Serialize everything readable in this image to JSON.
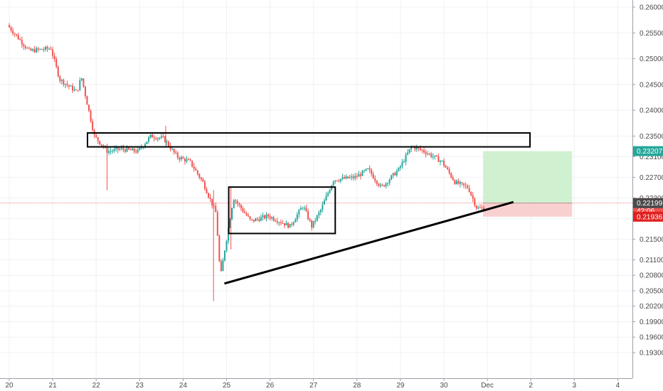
{
  "chart_data": {
    "type": "candlestick",
    "x_ticks": [
      "20",
      "21",
      "22",
      "23",
      "24",
      "25",
      "26",
      "27",
      "28",
      "29",
      "30",
      "Dec",
      "2",
      "3",
      "4"
    ],
    "y_ticks": [
      "0.26000",
      "0.25500",
      "0.25000",
      "0.24500",
      "0.24000",
      "0.23500",
      "0.23100",
      "0.22700",
      "0.22300",
      "0.21900",
      "0.21500",
      "0.21100",
      "0.20800",
      "0.20500",
      "0.20200",
      "0.19900",
      "0.19600",
      "0.19300"
    ],
    "ylim": [
      0.19,
      0.262
    ],
    "x_range": [
      "20",
      "4"
    ],
    "grid": true,
    "colors": {
      "up": "#26a69a",
      "down": "#ef5350",
      "target_zone": "#c8efc8",
      "stop_zone": "#f8c8c8",
      "current_line": "#f08080"
    },
    "price_tags": [
      {
        "label": "0.23207",
        "value": 0.23207,
        "color": "#26a69a"
      },
      {
        "label": "0.22201",
        "value": 0.22201,
        "color": "#ef5350"
      },
      {
        "label": "42:06",
        "value": 0.2205,
        "color": "#ef5350"
      },
      {
        "label": "0.22199",
        "value": 0.22199,
        "color": "#4a4a4a"
      },
      {
        "label": "0.21936",
        "value": 0.21936,
        "color": "#e02020"
      }
    ],
    "key_prices": [
      {
        "x": 20.0,
        "y": 0.2565
      },
      {
        "x": 20.5,
        "y": 0.2515
      },
      {
        "x": 21.0,
        "y": 0.252
      },
      {
        "x": 21.2,
        "y": 0.246
      },
      {
        "x": 21.6,
        "y": 0.2435
      },
      {
        "x": 21.7,
        "y": 0.2465
      },
      {
        "x": 22.0,
        "y": 0.235
      },
      {
        "x": 22.3,
        "y": 0.232
      },
      {
        "x": 22.6,
        "y": 0.2325
      },
      {
        "x": 23.0,
        "y": 0.232
      },
      {
        "x": 23.3,
        "y": 0.235
      },
      {
        "x": 23.6,
        "y": 0.2345
      },
      {
        "x": 23.9,
        "y": 0.231
      },
      {
        "x": 24.2,
        "y": 0.23
      },
      {
        "x": 24.5,
        "y": 0.226
      },
      {
        "x": 24.8,
        "y": 0.22
      },
      {
        "x": 24.9,
        "y": 0.2075
      },
      {
        "x": 25.0,
        "y": 0.213
      },
      {
        "x": 25.2,
        "y": 0.223
      },
      {
        "x": 25.6,
        "y": 0.2185
      },
      {
        "x": 26.0,
        "y": 0.2195
      },
      {
        "x": 26.5,
        "y": 0.2175
      },
      {
        "x": 26.8,
        "y": 0.2215
      },
      {
        "x": 27.0,
        "y": 0.2175
      },
      {
        "x": 27.2,
        "y": 0.2205
      },
      {
        "x": 27.5,
        "y": 0.2265
      },
      {
        "x": 28.0,
        "y": 0.227
      },
      {
        "x": 28.3,
        "y": 0.2285
      },
      {
        "x": 28.6,
        "y": 0.225
      },
      {
        "x": 29.0,
        "y": 0.2285
      },
      {
        "x": 29.3,
        "y": 0.233
      },
      {
        "x": 29.6,
        "y": 0.232
      },
      {
        "x": 30.0,
        "y": 0.23
      },
      {
        "x": 30.3,
        "y": 0.226
      },
      {
        "x": 30.6,
        "y": 0.225
      },
      {
        "x": 30.8,
        "y": 0.221
      }
    ],
    "annotations": {
      "resistance_box": {
        "x1": 21.8,
        "x2": 31.98,
        "y1": 0.2356,
        "y2": 0.2329
      },
      "range_box": {
        "x1": 25.05,
        "x2": 27.5,
        "y1": 0.2251,
        "y2": 0.2161
      },
      "trendline": {
        "x1": 24.95,
        "y1": 0.2064,
        "x2": 31.6,
        "y2": 0.2222
      },
      "position": {
        "x1": 30.9,
        "x2": 32.95,
        "entry": 0.22201,
        "target": 0.23207,
        "stop": 0.21936
      }
    }
  }
}
